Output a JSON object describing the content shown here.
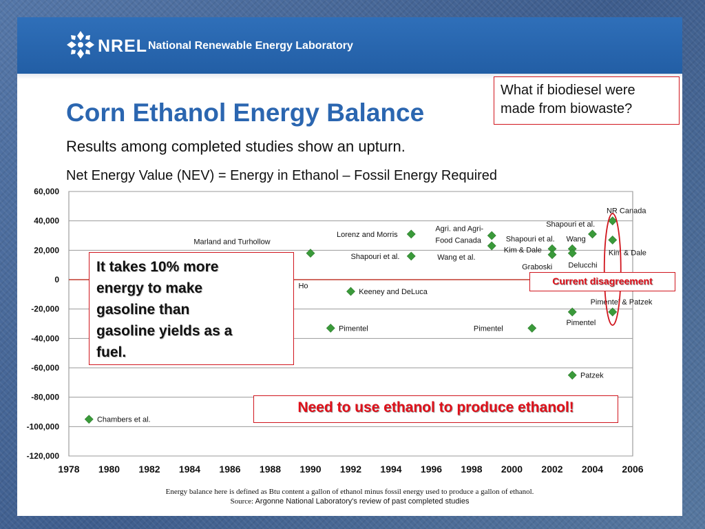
{
  "header": {
    "logo_text": "NREL",
    "org_name": "National Renewable Energy Laboratory",
    "banner_color": "#2a67b0"
  },
  "slide": {
    "title": "Corn Ethanol Energy Balance",
    "subtitle": "Results among completed studies show an upturn.",
    "definition": "Net Energy Value (NEV) = Energy in Ethanol – Fossil Energy Required",
    "question": [
      "What if biodiesel were",
      "made from biowaste?"
    ],
    "callout": [
      "It takes 10% more",
      "energy to make",
      "gasoline than",
      "gasoline yields as a",
      "fuel."
    ],
    "warning": "Need to use ethanol to produce ethanol!",
    "disagreement": "Current disagreement",
    "footnote": "Energy balance here is defined as Btu content a gallon of ethanol minus fossil energy used to produce a gallon of ethanol.",
    "source_label": "Source:",
    "source_text": "Argonne National Laboratory's review of past completed studies"
  },
  "colors": {
    "title": "#2b66b0",
    "marker": "#3a9a3a",
    "highlight_red": "#d0141c",
    "zero_line": "#c0392b"
  },
  "chart_data": {
    "type": "scatter",
    "title": "",
    "xlabel": "",
    "ylabel": "",
    "xlim": [
      1978,
      2006
    ],
    "ylim": [
      -120000,
      60000
    ],
    "x_ticks": [
      1978,
      1980,
      1982,
      1984,
      1986,
      1988,
      1990,
      1992,
      1994,
      1996,
      1998,
      2000,
      2002,
      2004,
      2006
    ],
    "y_ticks": [
      60000,
      40000,
      20000,
      0,
      -20000,
      -40000,
      -60000,
      -80000,
      -100000,
      -120000
    ],
    "y_tick_labels": [
      "60,000",
      "40,000",
      "20,000",
      "0",
      "-20,000",
      "-40,000",
      "-60,000",
      "-80,000",
      "-100,000",
      "-120,000"
    ],
    "grid": "horizontal",
    "points": [
      {
        "x": 1979,
        "y": -95000
      },
      {
        "x": 1990,
        "y": 18000
      },
      {
        "x": 1991,
        "y": -33000
      },
      {
        "x": 1992,
        "y": -8000
      },
      {
        "x": 1995,
        "y": 31000
      },
      {
        "x": 1995,
        "y": 16000
      },
      {
        "x": 1999,
        "y": 30000
      },
      {
        "x": 1999,
        "y": 23000
      },
      {
        "x": 2001,
        "y": -33000
      },
      {
        "x": 2002,
        "y": 21000
      },
      {
        "x": 2002,
        "y": 17000
      },
      {
        "x": 2003,
        "y": 21000
      },
      {
        "x": 2003,
        "y": 18000
      },
      {
        "x": 2003,
        "y": -22000
      },
      {
        "x": 2003,
        "y": -65000
      },
      {
        "x": 2004,
        "y": 31000
      },
      {
        "x": 2005,
        "y": 40000
      },
      {
        "x": 2005,
        "y": 27000
      },
      {
        "x": 2005,
        "y": -22000
      }
    ],
    "annotations": [
      {
        "text": "Chambers et al.",
        "x": 1979.4,
        "y": -95000
      },
      {
        "text": "Marland and Turhollow",
        "x": 1984.2,
        "y": 26000
      },
      {
        "text": "Ho",
        "x": 1989.4,
        "y": -4000
      },
      {
        "text": "Pimentel",
        "x": 1991.4,
        "y": -33000
      },
      {
        "text": "Keeney and DeLuca",
        "x": 1992.4,
        "y": -8000
      },
      {
        "text": "Lorenz and Morris",
        "x": 1991.3,
        "y": 31000
      },
      {
        "text": "Shapouri et al.",
        "x": 1992.0,
        "y": 16000
      },
      {
        "text": "Agri. and Agri-",
        "x": 1996.2,
        "y": 35000
      },
      {
        "text": "Food Canada",
        "x": 1996.2,
        "y": 27000
      },
      {
        "text": "Wang et al.",
        "x": 1996.3,
        "y": 15500
      },
      {
        "text": "Shapouri et al.",
        "x": 1999.7,
        "y": 28000
      },
      {
        "text": "Kim & Dale",
        "x": 1999.6,
        "y": 20500
      },
      {
        "text": "Graboski",
        "x": 2000.5,
        "y": 9000
      },
      {
        "text": "Pimentel",
        "x": 1998.1,
        "y": -33000
      },
      {
        "text": "Shapouri et al.",
        "x": 2001.7,
        "y": 38000
      },
      {
        "text": "Wang",
        "x": 2002.7,
        "y": 28000
      },
      {
        "text": "Delucchi",
        "x": 2002.8,
        "y": 10000
      },
      {
        "text": "NR Canada",
        "x": 2004.7,
        "y": 47000
      },
      {
        "text": "Kim & Dale",
        "x": 2004.8,
        "y": 18500
      },
      {
        "text": "Pimentel & Patzek",
        "x": 2003.9,
        "y": -15000
      },
      {
        "text": "Pimentel",
        "x": 2002.7,
        "y": -29000
      },
      {
        "text": "Patzek",
        "x": 2003.4,
        "y": -65000
      }
    ]
  }
}
